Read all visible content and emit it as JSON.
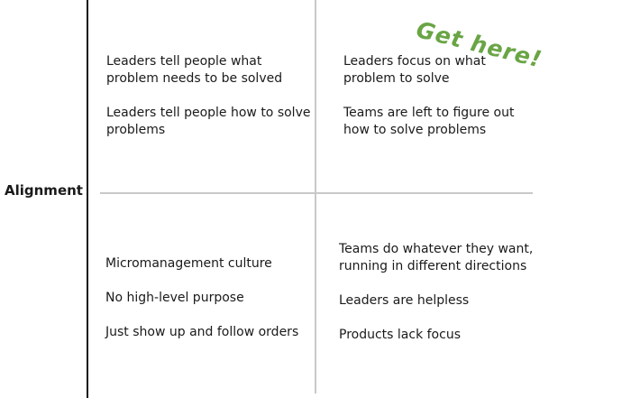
{
  "axis_label": "Alignment",
  "annotation": "Get here!",
  "quadrants": {
    "top_left": {
      "item1": [
        "Leaders tell people what",
        "problem needs to be solved"
      ],
      "item2": [
        "Leaders tell people how to solve",
        "problems"
      ]
    },
    "top_right": {
      "item1": [
        "Leaders focus on what",
        "problem to solve"
      ],
      "item2": [
        "Teams are left to figure out",
        "how to solve problems"
      ]
    },
    "bottom_left": {
      "item1": "Micromanagement culture",
      "item2": "No high-level purpose",
      "item3": "Just show up and follow orders"
    },
    "bottom_right": {
      "item1": [
        "Teams do whatever they want,",
        "running in different directions"
      ],
      "item2": "Leaders are helpless",
      "item3": "Products lack focus"
    }
  }
}
